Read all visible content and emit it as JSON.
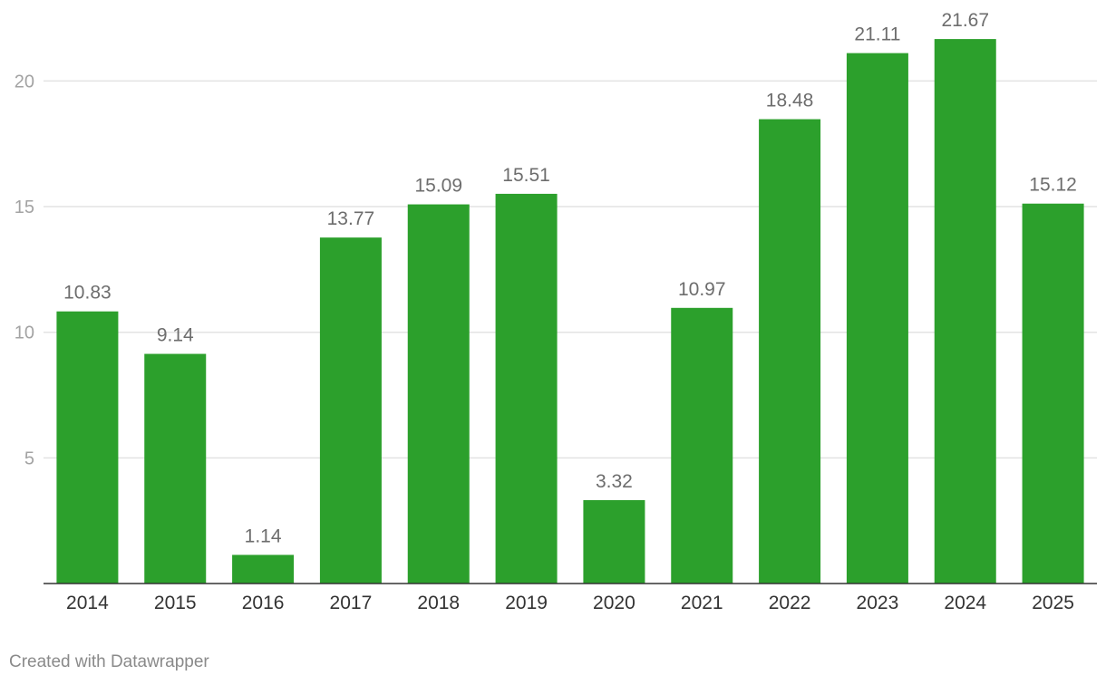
{
  "chart_data": {
    "type": "bar",
    "categories": [
      "2014",
      "2015",
      "2016",
      "2017",
      "2018",
      "2019",
      "2020",
      "2021",
      "2022",
      "2023",
      "2024",
      "2025"
    ],
    "values": [
      10.83,
      9.14,
      1.14,
      13.77,
      15.09,
      15.51,
      3.32,
      10.97,
      18.48,
      21.11,
      21.67,
      15.12
    ],
    "value_labels": [
      "10.83",
      "9.14",
      "1.14",
      "13.77",
      "15.09",
      "15.51",
      "3.32",
      "10.97",
      "18.48",
      "21.11",
      "21.67",
      "15.12"
    ],
    "yticks": [
      "5",
      "10",
      "15",
      "20"
    ],
    "ylim": [
      0,
      23
    ],
    "grid": true,
    "bar_color": "#2ca02c"
  },
  "footer": {
    "credit": "Created with Datawrapper"
  }
}
